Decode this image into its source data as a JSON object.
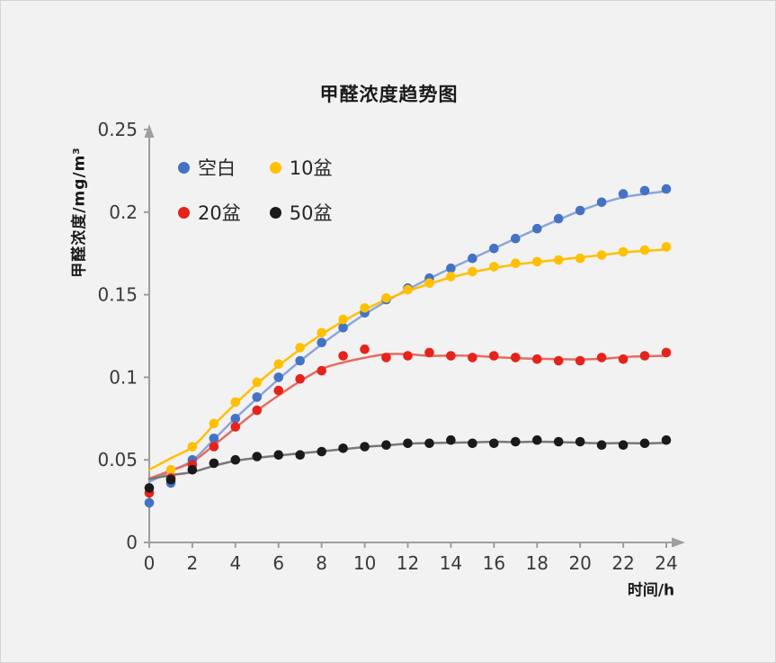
{
  "chart_data": {
    "type": "scatter",
    "title": "甲醛浓度趋势图",
    "xlabel": "时间/h",
    "ylabel": "甲醛浓度/mg/m³",
    "grid": false,
    "legend_position": "top-left-inside",
    "xlim": [
      0,
      24
    ],
    "ylim": [
      0,
      0.25
    ],
    "x_ticks": [
      0,
      2,
      4,
      6,
      8,
      10,
      12,
      14,
      16,
      18,
      20,
      22,
      24
    ],
    "y_ticks": [
      {
        "v": 0,
        "label": "0"
      },
      {
        "v": 0.05,
        "label": "0.05"
      },
      {
        "v": 0.1,
        "label": "0.1"
      },
      {
        "v": 0.15,
        "label": "0.15"
      },
      {
        "v": 0.2,
        "label": "0.2"
      },
      {
        "v": 0.25,
        "label": "0.25"
      }
    ],
    "x": [
      0,
      1,
      2,
      3,
      4,
      5,
      6,
      7,
      8,
      9,
      10,
      11,
      12,
      13,
      14,
      15,
      16,
      17,
      18,
      19,
      20,
      21,
      22,
      23,
      24
    ],
    "series": [
      {
        "name": "空白",
        "color": "#4472c4",
        "line_color": "#8ca6d9",
        "values": [
          0.024,
          0.036,
          0.05,
          0.063,
          0.075,
          0.088,
          0.1,
          0.11,
          0.121,
          0.13,
          0.139,
          0.147,
          0.154,
          0.16,
          0.166,
          0.172,
          0.178,
          0.184,
          0.19,
          0.196,
          0.201,
          0.206,
          0.211,
          0.213,
          0.214
        ]
      },
      {
        "name": "10盆",
        "color": "#ffc000",
        "line_color": "#ffc000",
        "values": [
          0.03,
          0.044,
          0.058,
          0.072,
          0.085,
          0.097,
          0.108,
          0.118,
          0.127,
          0.135,
          0.142,
          0.148,
          0.153,
          0.157,
          0.161,
          0.164,
          0.167,
          0.169,
          0.17,
          0.171,
          0.172,
          0.174,
          0.176,
          0.177,
          0.179
        ]
      },
      {
        "name": "20盆",
        "color": "#e5231b",
        "line_color": "#e86a60",
        "values": [
          0.03,
          0.039,
          0.047,
          0.058,
          0.07,
          0.08,
          0.092,
          0.099,
          0.104,
          0.113,
          0.117,
          0.112,
          0.113,
          0.115,
          0.113,
          0.112,
          0.113,
          0.112,
          0.111,
          0.11,
          0.11,
          0.112,
          0.111,
          0.113,
          0.115
        ]
      },
      {
        "name": "50盆",
        "color": "#1a1a1a",
        "line_color": "#787878",
        "values": [
          0.033,
          0.038,
          0.044,
          0.048,
          0.05,
          0.052,
          0.053,
          0.053,
          0.055,
          0.057,
          0.058,
          0.059,
          0.06,
          0.06,
          0.062,
          0.06,
          0.06,
          0.061,
          0.062,
          0.061,
          0.061,
          0.059,
          0.059,
          0.06,
          0.062
        ]
      }
    ]
  }
}
